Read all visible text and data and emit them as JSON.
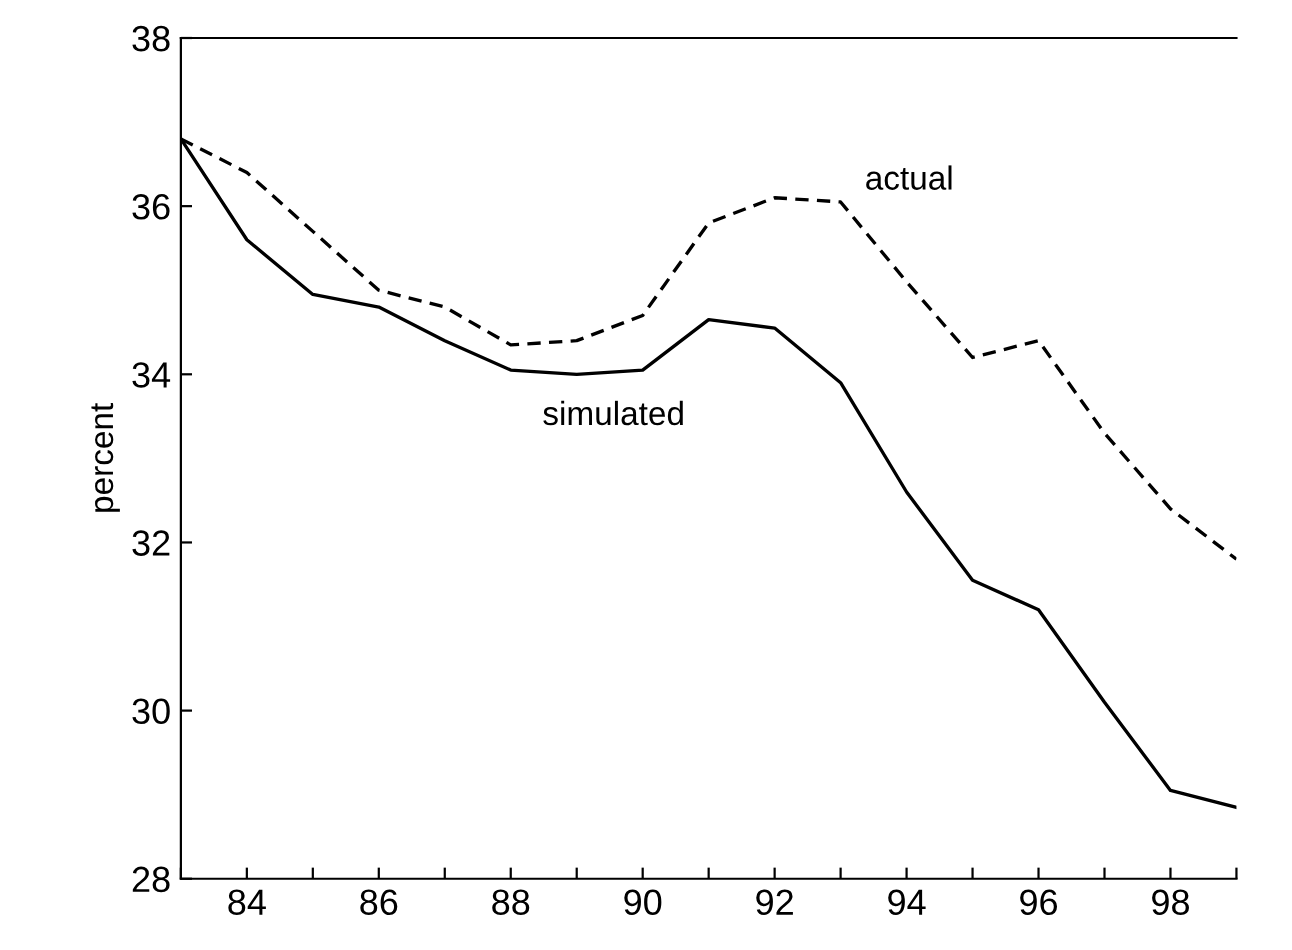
{
  "chart_data": {
    "type": "line",
    "ylabel": "percent",
    "x": [
      83,
      84,
      85,
      86,
      87,
      88,
      89,
      90,
      91,
      92,
      93,
      94,
      95,
      96,
      97,
      98,
      99
    ],
    "series": [
      {
        "color": "#000000",
        "line_style": "dashed",
        "values": [
          36.8,
          36.4,
          35.7,
          35.0,
          34.8,
          34.35,
          34.4,
          34.7,
          35.8,
          36.1,
          36.05,
          35.1,
          34.2,
          34.4,
          33.3,
          32.4,
          31.8
        ]
      },
      {
        "color": "#000000",
        "line_style": "solid",
        "values": [
          36.8,
          35.6,
          34.95,
          34.8,
          34.4,
          34.05,
          34.0,
          34.05,
          34.65,
          34.55,
          33.9,
          32.6,
          31.55,
          31.2,
          30.1,
          29.05,
          28.85
        ]
      }
    ],
    "annotations": [
      "actual",
      "simulated"
    ],
    "xlim": [
      83,
      99
    ],
    "ylim": [
      28,
      38
    ],
    "xticks": [
      {
        "value": 83,
        "label": null
      },
      84,
      {
        "value": 85,
        "label": null
      },
      86,
      {
        "value": 87,
        "label": null
      },
      88,
      {
        "value": 89,
        "label": null
      },
      90,
      {
        "value": 91,
        "label": null
      },
      92,
      {
        "value": 93,
        "label": null
      },
      94,
      {
        "value": 95,
        "label": null
      },
      96,
      {
        "value": 97,
        "label": null
      },
      98,
      {
        "value": 99,
        "label": null
      }
    ],
    "yticks": [
      28,
      30,
      32,
      34,
      36,
      38
    ],
    "grid": false,
    "legend": false,
    "marker": "none"
  }
}
